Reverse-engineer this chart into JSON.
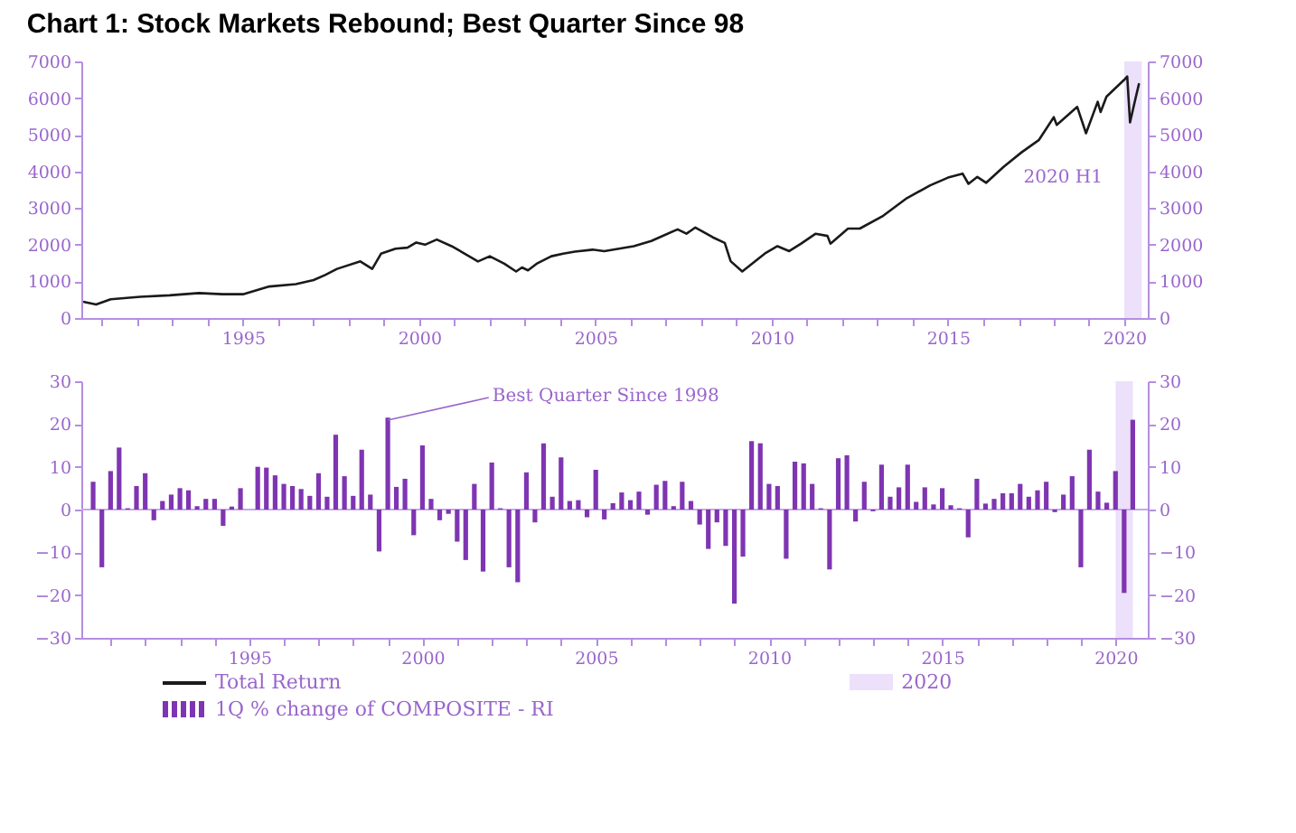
{
  "chart_data": [
    {
      "type": "line",
      "title": "Chart 1: Stock Markets Rebound; Best Quarter Since 98",
      "series": [
        {
          "name": "Total Return",
          "color": "#1a1a1a",
          "x": [
            "1990-07",
            "1990-11",
            "1991-04",
            "1992-02",
            "1992-12",
            "1993-10",
            "1994-06",
            "1995-01",
            "1995-10",
            "1996-07",
            "1997-01",
            "1997-05",
            "1997-09",
            "1998-05",
            "1998-09",
            "1998-12",
            "1999-05",
            "1999-09",
            "1999-12",
            "2000-03",
            "2000-07",
            "2000-12",
            "2001-04",
            "2001-09",
            "2002-01",
            "2002-06",
            "2002-10",
            "2002-12",
            "2003-02",
            "2003-05",
            "2003-10",
            "2004-02",
            "2004-06",
            "2004-12",
            "2005-04",
            "2006-02",
            "2006-08",
            "2007-05",
            "2007-08",
            "2007-11",
            "2008-05",
            "2008-09",
            "2008-11",
            "2009-03",
            "2009-11",
            "2010-03",
            "2010-07",
            "2010-11",
            "2011-04",
            "2011-08",
            "2011-09",
            "2012-03",
            "2012-07",
            "2013-03",
            "2013-11",
            "2014-07",
            "2015-01",
            "2015-06",
            "2015-08",
            "2015-11",
            "2016-02",
            "2016-08",
            "2017-02",
            "2017-08",
            "2018-01",
            "2018-02",
            "2018-09",
            "2018-12",
            "2019-04",
            "2019-05",
            "2019-07",
            "2020-01",
            "2020-02",
            "2020-03",
            "2020-05",
            "2020-06"
          ],
          "values": [
            440,
            370,
            510,
            580,
            620,
            680,
            650,
            650,
            860,
            925,
            1035,
            1175,
            1340,
            1545,
            1340,
            1755,
            1890,
            1920,
            2060,
            2000,
            2140,
            1960,
            1780,
            1545,
            1685,
            1480,
            1270,
            1380,
            1300,
            1480,
            1685,
            1755,
            1810,
            1865,
            1825,
            1960,
            2100,
            2420,
            2300,
            2470,
            2200,
            2050,
            1550,
            1270,
            1780,
            1960,
            1825,
            2030,
            2300,
            2240,
            2030,
            2440,
            2440,
            2790,
            3270,
            3620,
            3830,
            3940,
            3660,
            3850,
            3690,
            4130,
            4520,
            4860,
            5480,
            5270,
            5760,
            5040,
            5900,
            5620,
            6040,
            6500,
            6590,
            5340,
            6040,
            6380
          ]
        }
      ],
      "xlim": [
        "1990-06",
        "2020-09"
      ],
      "xticks": [
        {
          "value": "1991",
          "label": null
        },
        {
          "value": "1992",
          "label": null
        },
        {
          "value": "1993",
          "label": null
        },
        {
          "value": "1994",
          "label": null
        },
        "1995",
        {
          "value": "1996",
          "label": null
        },
        {
          "value": "1997",
          "label": null
        },
        {
          "value": "1998",
          "label": null
        },
        {
          "value": "1999",
          "label": null
        },
        "2000",
        {
          "value": "2001",
          "label": null
        },
        {
          "value": "2002",
          "label": null
        },
        {
          "value": "2003",
          "label": null
        },
        {
          "value": "2004",
          "label": null
        },
        "2005",
        {
          "value": "2006",
          "label": null
        },
        {
          "value": "2007",
          "label": null
        },
        {
          "value": "2008",
          "label": null
        },
        {
          "value": "2009",
          "label": null
        },
        "2010",
        {
          "value": "2011",
          "label": null
        },
        {
          "value": "2012",
          "label": null
        },
        {
          "value": "2013",
          "label": null
        },
        {
          "value": "2014",
          "label": null
        },
        "2015",
        {
          "value": "2016",
          "label": null
        },
        {
          "value": "2017",
          "label": null
        },
        {
          "value": "2018",
          "label": null
        },
        {
          "value": "2019",
          "label": null
        },
        "2020"
      ],
      "ylim": [
        0,
        7000
      ],
      "yticks": [
        0,
        1000,
        2000,
        3000,
        4000,
        5000,
        6000,
        7000
      ],
      "y2lim": [
        0,
        7000
      ],
      "y2ticks": [
        0,
        1000,
        2000,
        3000,
        4000,
        5000,
        6000,
        7000
      ],
      "bands": [
        {
          "axis": "x",
          "from": "2020-01",
          "to": "2020-07",
          "label": "2020 H1",
          "color": "#ece0fa"
        }
      ],
      "grid": false
    },
    {
      "type": "bar",
      "series": [
        {
          "name": "1Q % change of COMPOSITE - RI",
          "color": "#7f35b2",
          "x": [
            "1990-06-30",
            "1990-09-30",
            "1990-12-31",
            "1991-03-31",
            "1991-06-30",
            "1991-09-30",
            "1991-12-31",
            "1992-03-31",
            "1992-06-30",
            "1992-09-30",
            "1992-12-31",
            "1993-03-31",
            "1993-06-30",
            "1993-09-30",
            "1993-12-31",
            "1994-03-31",
            "1994-06-30",
            "1994-09-30",
            "1994-12-31",
            "1995-03-31",
            "1995-06-30",
            "1995-09-30",
            "1995-12-31",
            "1996-03-31",
            "1996-06-30",
            "1996-09-30",
            "1996-12-31",
            "1997-03-31",
            "1997-06-30",
            "1997-09-30",
            "1997-12-31",
            "1998-03-31",
            "1998-06-30",
            "1998-09-30",
            "1998-12-31",
            "1999-03-31",
            "1999-06-30",
            "1999-09-30",
            "1999-12-31",
            "2000-03-31",
            "2000-06-30",
            "2000-09-30",
            "2000-12-31",
            "2001-03-31",
            "2001-06-30",
            "2001-09-30",
            "2001-12-31",
            "2002-03-31",
            "2002-06-30",
            "2002-09-30",
            "2002-12-31",
            "2003-03-31",
            "2003-06-30",
            "2003-09-30",
            "2003-12-31",
            "2004-03-31",
            "2004-06-30",
            "2004-09-30",
            "2004-12-31",
            "2005-03-31",
            "2005-06-30",
            "2005-09-30",
            "2005-12-31",
            "2006-03-31",
            "2006-06-30",
            "2006-09-30",
            "2006-12-31",
            "2007-03-31",
            "2007-06-30",
            "2007-09-30",
            "2007-12-31",
            "2008-03-31",
            "2008-06-30",
            "2008-09-30",
            "2008-12-31",
            "2009-03-31",
            "2009-06-30",
            "2009-09-30",
            "2009-12-31",
            "2010-03-31",
            "2010-06-30",
            "2010-09-30",
            "2010-12-31",
            "2011-03-31",
            "2011-06-30",
            "2011-09-30",
            "2011-12-31",
            "2012-03-31",
            "2012-06-30",
            "2012-09-30",
            "2012-12-31",
            "2013-03-31",
            "2013-06-30",
            "2013-09-30",
            "2013-12-31",
            "2014-03-31",
            "2014-06-30",
            "2014-09-30",
            "2014-12-31",
            "2015-03-31",
            "2015-06-30",
            "2015-09-30",
            "2015-12-31",
            "2016-03-31",
            "2016-06-30",
            "2016-09-30",
            "2016-12-31",
            "2017-03-31",
            "2017-06-30",
            "2017-09-30",
            "2017-12-31",
            "2018-03-31",
            "2018-06-30",
            "2018-09-30",
            "2018-12-31",
            "2019-03-31",
            "2019-06-30",
            "2019-09-30",
            "2019-12-31",
            "2020-03-31",
            "2020-06-30"
          ],
          "values": [
            6.5,
            -13.5,
            9,
            14.5,
            0.3,
            5.5,
            8.5,
            -2.5,
            2,
            3.5,
            5,
            4.5,
            0.8,
            2.5,
            2.5,
            -3.8,
            0.7,
            5,
            0,
            10,
            9.8,
            8,
            6,
            5.5,
            4.8,
            3.2,
            8.5,
            3,
            17.5,
            7.8,
            3.2,
            14,
            3.5,
            -9.8,
            21.5,
            5.3,
            7.2,
            -6,
            15,
            2.5,
            -2.5,
            -1,
            -7.5,
            -11.8,
            6,
            -14.5,
            11,
            0.3,
            -13.5,
            -17,
            8.7,
            -3,
            15.5,
            3,
            12.2,
            2,
            2.2,
            -1.8,
            9.3,
            -2.3,
            1.5,
            4,
            2.2,
            4.2,
            -1.2,
            5.8,
            6.7,
            0.8,
            6.5,
            2,
            -3.5,
            -9.2,
            -3,
            -8.5,
            -22,
            -11,
            16,
            15.5,
            6,
            5.5,
            -11.5,
            11.2,
            10.8,
            6,
            0.3,
            -14,
            12,
            12.7,
            -2.8,
            6.5,
            -0.4,
            10.5,
            3,
            5.2,
            10.5,
            1.8,
            5.2,
            1.2,
            5,
            1,
            0.3,
            -6.5,
            7.2,
            1.4,
            2.5,
            3.8,
            3.8,
            6,
            3,
            4.5,
            6.5,
            -0.6,
            3.5,
            7.8,
            -13.5,
            14,
            4.2,
            1.6,
            9,
            -19.5,
            21
          ]
        }
      ],
      "xlim": [
        "1990-06",
        "2020-09"
      ],
      "xticks": [
        {
          "value": "1991",
          "label": null
        },
        {
          "value": "1992",
          "label": null
        },
        {
          "value": "1993",
          "label": null
        },
        {
          "value": "1994",
          "label": null
        },
        "1995",
        {
          "value": "1996",
          "label": null
        },
        {
          "value": "1997",
          "label": null
        },
        {
          "value": "1998",
          "label": null
        },
        {
          "value": "1999",
          "label": null
        },
        "2000",
        {
          "value": "2001",
          "label": null
        },
        {
          "value": "2002",
          "label": null
        },
        {
          "value": "2003",
          "label": null
        },
        {
          "value": "2004",
          "label": null
        },
        "2005",
        {
          "value": "2006",
          "label": null
        },
        {
          "value": "2007",
          "label": null
        },
        {
          "value": "2008",
          "label": null
        },
        {
          "value": "2009",
          "label": null
        },
        "2010",
        {
          "value": "2011",
          "label": null
        },
        {
          "value": "2012",
          "label": null
        },
        {
          "value": "2013",
          "label": null
        },
        {
          "value": "2014",
          "label": null
        },
        "2015",
        {
          "value": "2016",
          "label": null
        },
        {
          "value": "2017",
          "label": null
        },
        {
          "value": "2018",
          "label": null
        },
        {
          "value": "2019",
          "label": null
        },
        "2020"
      ],
      "ylim": [
        -30,
        30
      ],
      "yticks": [
        -30,
        -20,
        -10,
        0,
        10,
        20,
        30
      ],
      "y2lim": [
        -30,
        30
      ],
      "y2ticks": [
        -30,
        -20,
        -10,
        0,
        10,
        20,
        30
      ],
      "bands": [
        {
          "axis": "x",
          "from": "2020-01",
          "to": "2020-07",
          "label": "2020",
          "color": "#ece0fa"
        }
      ],
      "ref_lines": [
        {
          "axis": "y",
          "value": 0,
          "color": "#c6a8e8"
        }
      ],
      "annotations": [
        {
          "text": "Best Quarter Since 1998",
          "x": "1998-12-31",
          "y": 21.5
        }
      ],
      "legend": "bottom",
      "grid": false
    }
  ]
}
